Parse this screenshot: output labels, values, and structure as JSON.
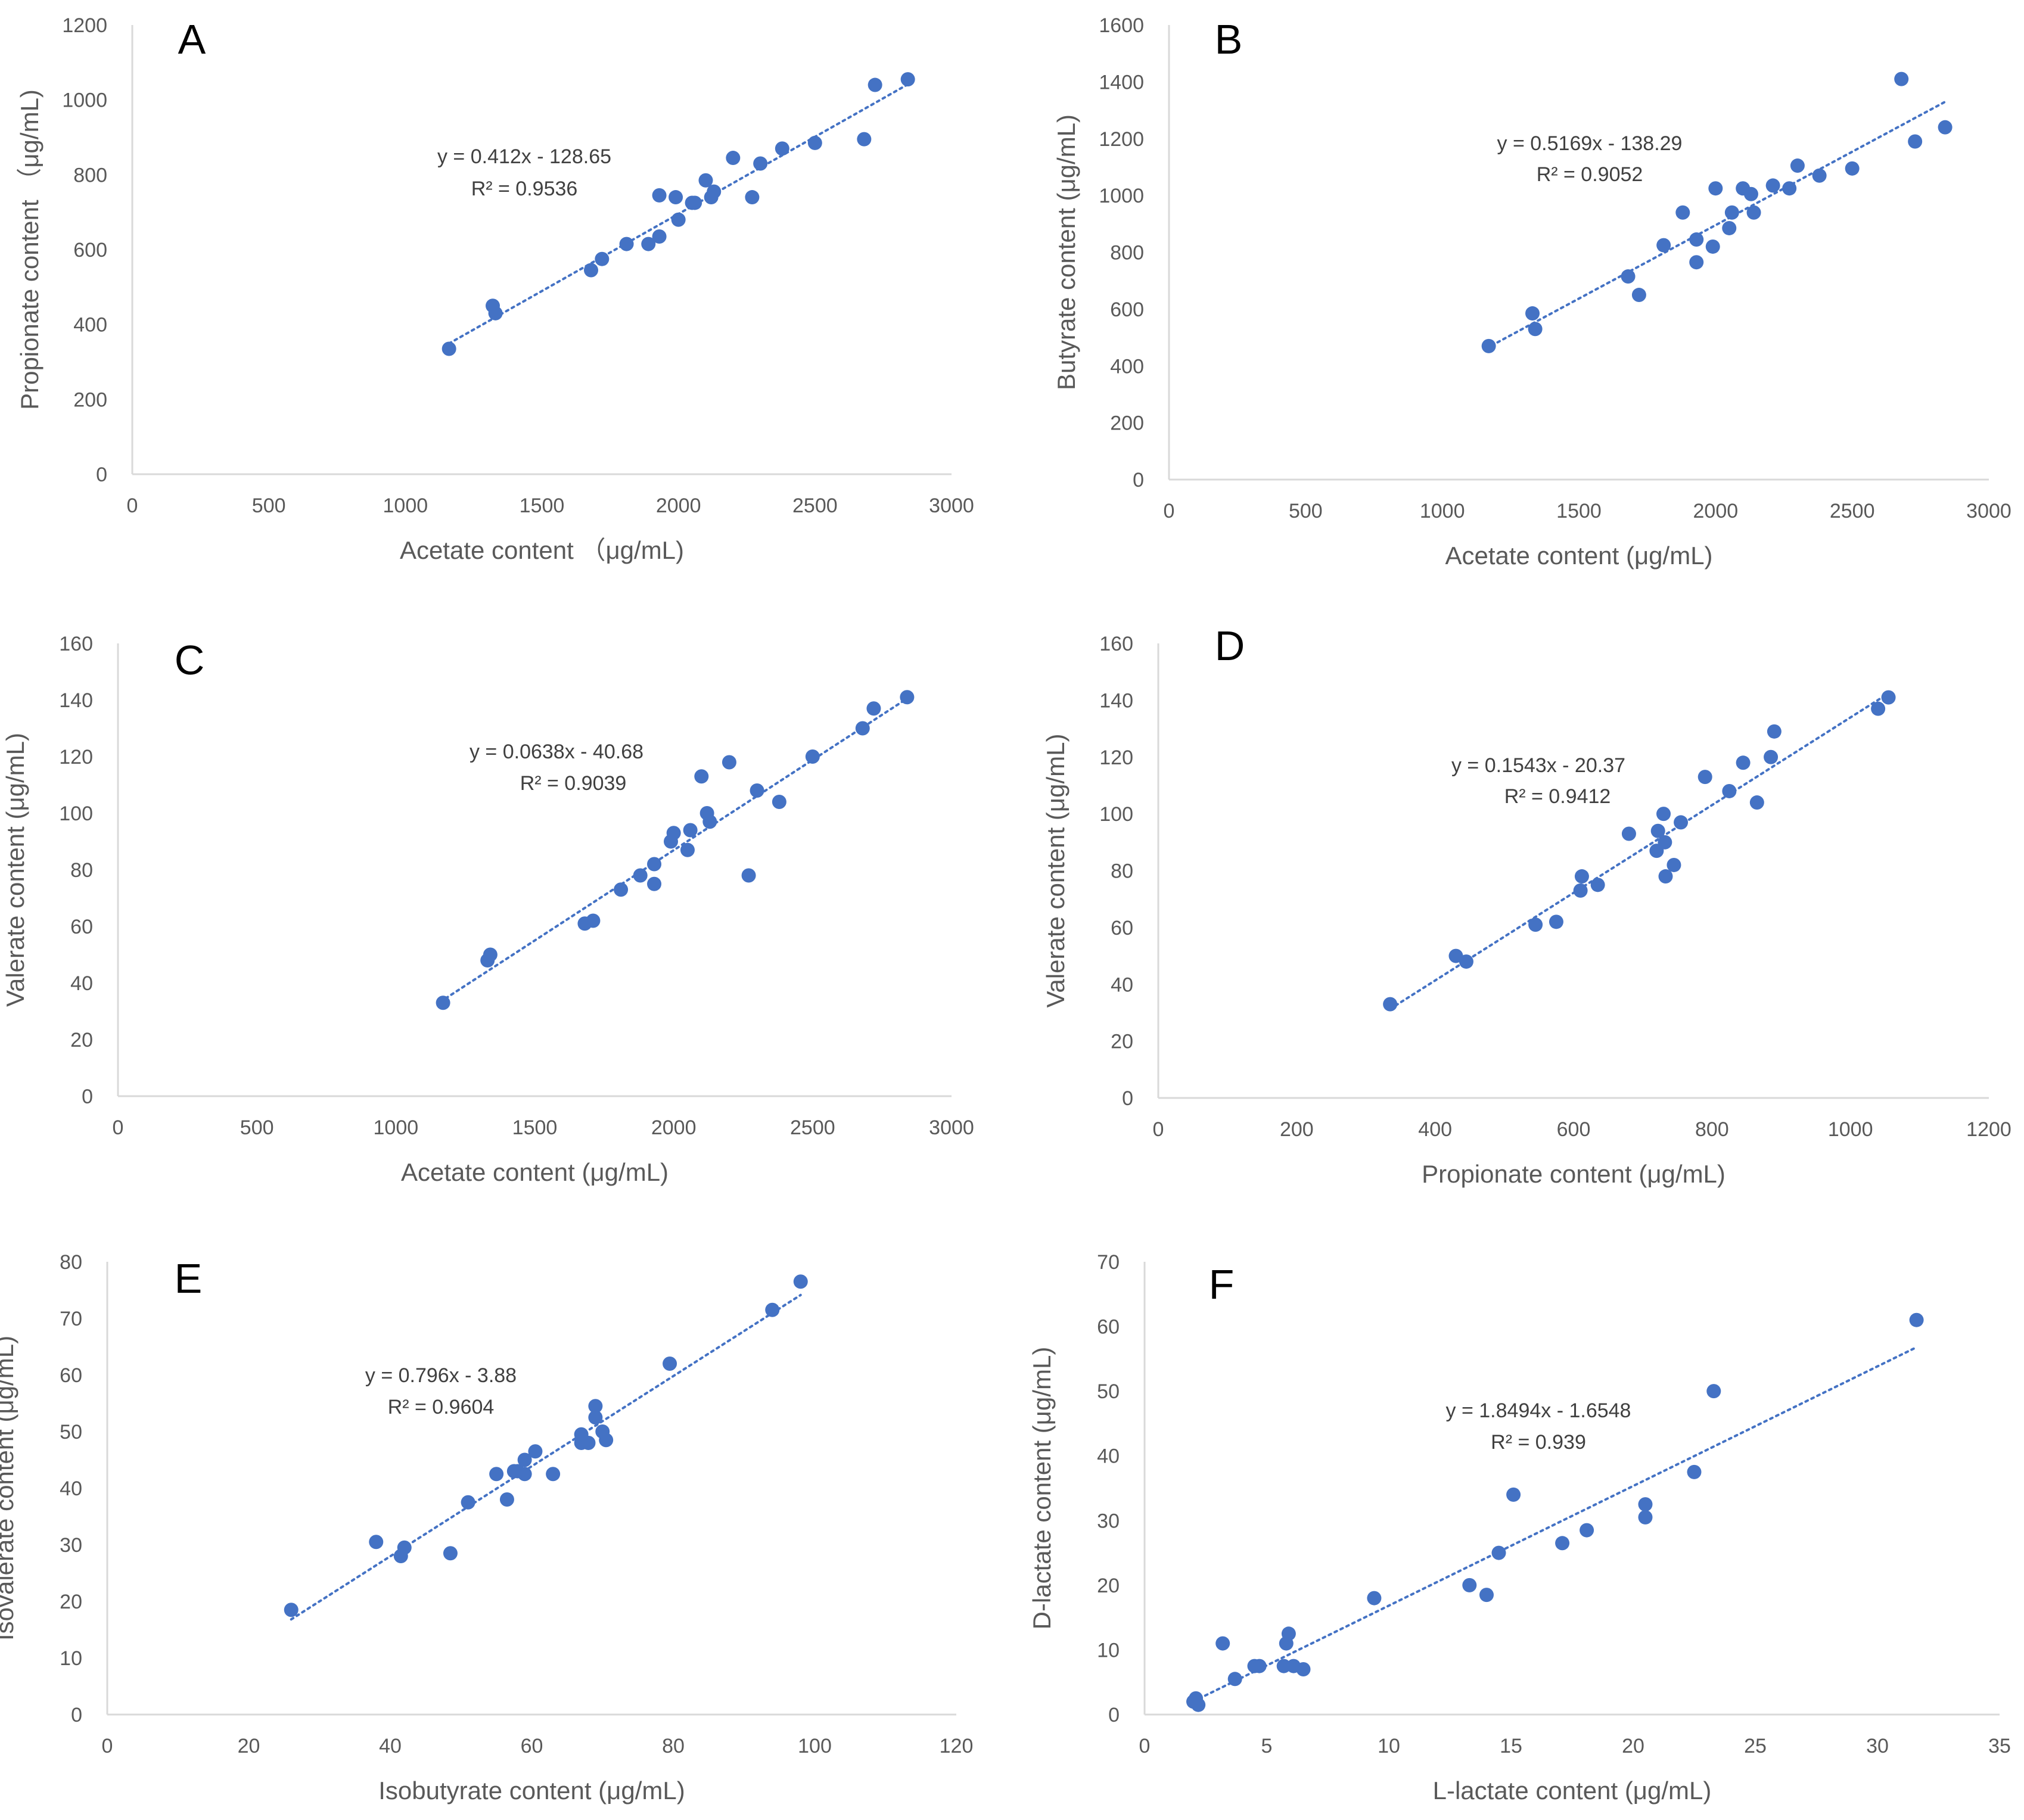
{
  "colors": {
    "marker": "#4472C4",
    "trendline": "#4472C4",
    "axis": "#D9D9D9",
    "text": "#595959"
  },
  "chart_data": [
    {
      "type": "scatter",
      "panel_label": "A",
      "xlabel": "Acetate content （μg/mL)",
      "ylabel": "Propionate content （μg/mL)",
      "xlim": [
        0,
        3000
      ],
      "ylim": [
        0,
        1200
      ],
      "xticks": [
        0,
        500,
        1000,
        1500,
        2000,
        2500,
        3000
      ],
      "yticks": [
        0,
        200,
        400,
        600,
        800,
        1000,
        1200
      ],
      "equation": "y = 0.412x - 128.65",
      "r2": "R² = 0.9536",
      "trend": {
        "slope": 0.412,
        "intercept": -128.65,
        "x_range": [
          1160,
          2840
        ]
      },
      "points": [
        [
          1160,
          335
        ],
        [
          1320,
          450
        ],
        [
          1330,
          430
        ],
        [
          1680,
          545
        ],
        [
          1720,
          575
        ],
        [
          1810,
          615
        ],
        [
          1890,
          615
        ],
        [
          1930,
          635
        ],
        [
          1930,
          745
        ],
        [
          1990,
          740
        ],
        [
          2000,
          680
        ],
        [
          2050,
          725
        ],
        [
          2060,
          725
        ],
        [
          2100,
          785
        ],
        [
          2120,
          740
        ],
        [
          2130,
          755
        ],
        [
          2200,
          845
        ],
        [
          2270,
          740
        ],
        [
          2300,
          830
        ],
        [
          2380,
          870
        ],
        [
          2500,
          885
        ],
        [
          2680,
          895
        ],
        [
          2720,
          1040
        ],
        [
          2840,
          1055
        ]
      ]
    },
    {
      "type": "scatter",
      "panel_label": "B",
      "xlabel": "Acetate content (μg/mL)",
      "ylabel": "Butyrate content (μg/mL)",
      "xlim": [
        0,
        3000
      ],
      "ylim": [
        0,
        1600
      ],
      "xticks": [
        0,
        500,
        1000,
        1500,
        2000,
        2500,
        3000
      ],
      "yticks": [
        0,
        200,
        400,
        600,
        800,
        1000,
        1200,
        1400,
        1600
      ],
      "equation": "y = 0.5169x - 138.29",
      "r2": "R² = 0.9052",
      "trend": {
        "slope": 0.5169,
        "intercept": -138.29,
        "x_range": [
          1160,
          2840
        ]
      },
      "points": [
        [
          1170,
          470
        ],
        [
          1330,
          585
        ],
        [
          1340,
          530
        ],
        [
          1680,
          715
        ],
        [
          1720,
          650
        ],
        [
          1810,
          825
        ],
        [
          1880,
          940
        ],
        [
          1930,
          845
        ],
        [
          1930,
          765
        ],
        [
          1990,
          820
        ],
        [
          2000,
          1025
        ],
        [
          2050,
          885
        ],
        [
          2060,
          940
        ],
        [
          2100,
          1025
        ],
        [
          2130,
          1005
        ],
        [
          2140,
          940
        ],
        [
          2210,
          1035
        ],
        [
          2270,
          1025
        ],
        [
          2300,
          1105
        ],
        [
          2380,
          1070
        ],
        [
          2500,
          1095
        ],
        [
          2680,
          1410
        ],
        [
          2730,
          1190
        ],
        [
          2840,
          1240
        ]
      ]
    },
    {
      "type": "scatter",
      "panel_label": "C",
      "xlabel": "Acetate content (μg/mL)",
      "ylabel": "Valerate content (μg/mL)",
      "xlim": [
        0,
        3000
      ],
      "ylim": [
        0,
        160
      ],
      "xticks": [
        0,
        500,
        1000,
        1500,
        2000,
        2500,
        3000
      ],
      "yticks": [
        0,
        20,
        40,
        60,
        80,
        100,
        120,
        140,
        160
      ],
      "equation": "y = 0.0638x - 40.68",
      "r2": "R² = 0.9039",
      "trend": {
        "slope": 0.0638,
        "intercept": -40.68,
        "x_range": [
          1160,
          2840
        ]
      },
      "points": [
        [
          1170,
          33
        ],
        [
          1330,
          48
        ],
        [
          1340,
          50
        ],
        [
          1680,
          61
        ],
        [
          1710,
          62
        ],
        [
          1810,
          73
        ],
        [
          1880,
          78
        ],
        [
          1930,
          82
        ],
        [
          1930,
          75
        ],
        [
          1990,
          90
        ],
        [
          2000,
          93
        ],
        [
          2050,
          87
        ],
        [
          2060,
          94
        ],
        [
          2100,
          113
        ],
        [
          2120,
          100
        ],
        [
          2130,
          97
        ],
        [
          2200,
          118
        ],
        [
          2270,
          78
        ],
        [
          2300,
          108
        ],
        [
          2380,
          104
        ],
        [
          2500,
          120
        ],
        [
          2680,
          130
        ],
        [
          2720,
          137
        ],
        [
          2840,
          141
        ]
      ]
    },
    {
      "type": "scatter",
      "panel_label": "D",
      "xlabel": "Propionate content (μg/mL)",
      "ylabel": "Valerate content (μg/mL)",
      "xlim": [
        0,
        1200
      ],
      "ylim": [
        0,
        160
      ],
      "xticks": [
        0,
        200,
        400,
        600,
        800,
        1000,
        1200
      ],
      "yticks": [
        0,
        20,
        40,
        60,
        80,
        100,
        120,
        140,
        160
      ],
      "equation": "y = 0.1543x - 20.37",
      "r2": "R² = 0.9412",
      "trend": {
        "slope": 0.1543,
        "intercept": -20.37,
        "x_range": [
          335,
          1055
        ]
      },
      "points": [
        [
          335,
          33
        ],
        [
          430,
          50
        ],
        [
          445,
          48
        ],
        [
          545,
          61
        ],
        [
          575,
          62
        ],
        [
          610,
          73
        ],
        [
          612,
          78
        ],
        [
          635,
          75
        ],
        [
          680,
          93
        ],
        [
          720,
          87
        ],
        [
          722,
          94
        ],
        [
          730,
          100
        ],
        [
          732,
          90
        ],
        [
          733,
          78
        ],
        [
          745,
          82
        ],
        [
          755,
          97
        ],
        [
          790,
          113
        ],
        [
          825,
          108
        ],
        [
          845,
          118
        ],
        [
          865,
          104
        ],
        [
          885,
          120
        ],
        [
          890,
          129
        ],
        [
          1040,
          137
        ],
        [
          1055,
          141
        ]
      ]
    },
    {
      "type": "scatter",
      "panel_label": "E",
      "xlabel": "Isobutyrate content (μg/mL)",
      "ylabel": "Isovalerate content (μg/mL)",
      "xlim": [
        0,
        120
      ],
      "ylim": [
        0,
        80
      ],
      "xticks": [
        0,
        20,
        40,
        60,
        80,
        100,
        120
      ],
      "yticks": [
        0,
        10,
        20,
        30,
        40,
        50,
        60,
        70,
        80
      ],
      "equation": "y = 0.796x - 3.88",
      "r2": "R² = 0.9604",
      "trend": {
        "slope": 0.796,
        "intercept": -3.88,
        "x_range": [
          26,
          98
        ]
      },
      "points": [
        [
          26,
          18.5
        ],
        [
          38,
          30.5
        ],
        [
          41.5,
          28
        ],
        [
          42,
          29.5
        ],
        [
          48.5,
          28.5
        ],
        [
          51,
          37.5
        ],
        [
          55,
          42.5
        ],
        [
          56.5,
          38
        ],
        [
          57.5,
          43
        ],
        [
          58,
          43
        ],
        [
          59,
          42.5
        ],
        [
          59,
          45
        ],
        [
          60.5,
          46.5
        ],
        [
          63,
          42.5
        ],
        [
          67,
          48
        ],
        [
          67,
          49.5
        ],
        [
          68,
          48
        ],
        [
          69,
          52.5
        ],
        [
          69,
          54.5
        ],
        [
          70,
          50
        ],
        [
          70.5,
          48.5
        ],
        [
          79.5,
          62
        ],
        [
          94,
          71.5
        ],
        [
          98,
          76.5
        ]
      ]
    },
    {
      "type": "scatter",
      "panel_label": "F",
      "xlabel": "L-lactate content (μg/mL)",
      "ylabel": "D-lactate content (μg/mL)",
      "xlim": [
        0,
        35
      ],
      "ylim": [
        0,
        70
      ],
      "xticks": [
        0,
        5,
        10,
        15,
        20,
        25,
        30,
        35
      ],
      "yticks": [
        0,
        10,
        20,
        30,
        40,
        50,
        60,
        70
      ],
      "equation": "y = 1.8494x - 1.6548",
      "r2": "R² = 0.939",
      "trend": {
        "slope": 1.8494,
        "intercept": -1.6548,
        "x_range": [
          2,
          31.6
        ]
      },
      "points": [
        [
          2,
          2
        ],
        [
          2.1,
          2.5
        ],
        [
          2.2,
          1.5
        ],
        [
          3.2,
          11
        ],
        [
          3.7,
          5.5
        ],
        [
          4.5,
          7.5
        ],
        [
          4.7,
          7.5
        ],
        [
          5.7,
          7.5
        ],
        [
          5.8,
          11
        ],
        [
          5.9,
          12.5
        ],
        [
          6.1,
          7.5
        ],
        [
          6.5,
          7
        ],
        [
          9.4,
          18
        ],
        [
          13.3,
          20
        ],
        [
          14,
          18.5
        ],
        [
          14.5,
          25
        ],
        [
          15.1,
          34
        ],
        [
          17.1,
          26.5
        ],
        [
          18.1,
          28.5
        ],
        [
          20.5,
          32.5
        ],
        [
          20.5,
          30.5
        ],
        [
          22.5,
          37.5
        ],
        [
          23.3,
          50
        ],
        [
          31.6,
          61
        ]
      ]
    }
  ]
}
